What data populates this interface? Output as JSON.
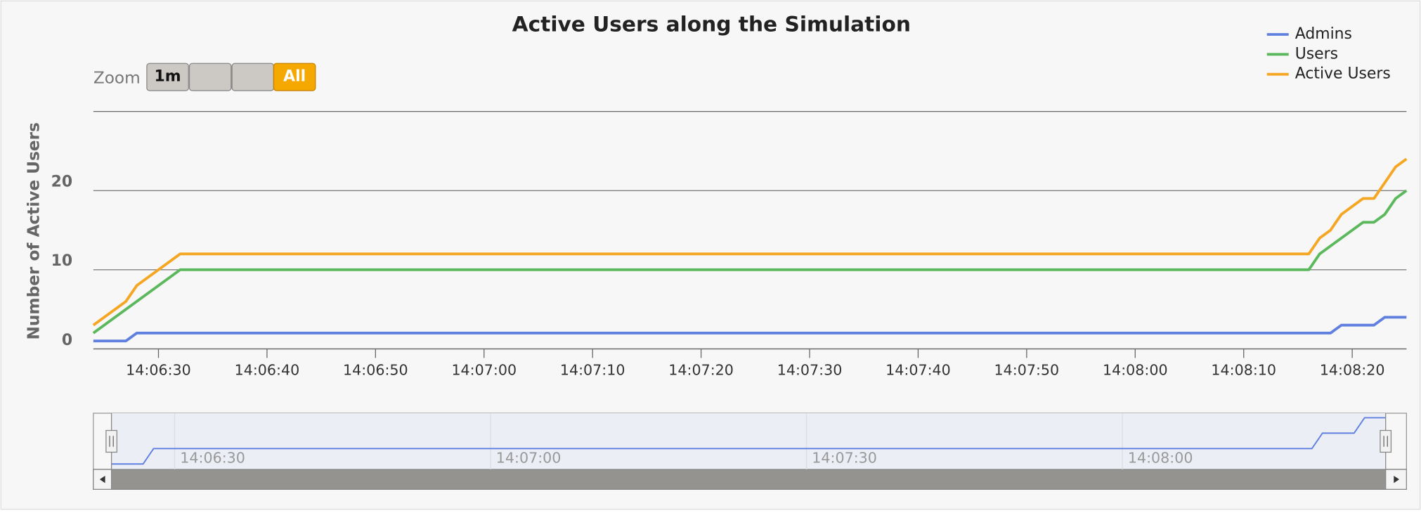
{
  "chart_data": {
    "type": "line",
    "title": "Active Users along the Simulation",
    "y_label": "Number of Active Users",
    "zoom_label": "Zoom",
    "zoom_buttons": [
      "1m",
      "All"
    ],
    "xlim": [
      "14:06:24",
      "14:08:25"
    ],
    "xticks": [
      "14:06:30",
      "14:06:40",
      "14:06:50",
      "14:07:00",
      "14:07:10",
      "14:07:20",
      "14:07:30",
      "14:07:40",
      "14:07:50",
      "14:08:00",
      "14:08:10",
      "14:08:20"
    ],
    "ylim": [
      0,
      30
    ],
    "yticks": [
      0,
      10,
      20
    ],
    "grid": true,
    "legend": "top-right",
    "series": [
      {
        "name": "Admins",
        "color": "#6080e0",
        "x": [
          "14:06:24",
          "14:06:27",
          "14:06:28",
          "14:08:18",
          "14:08:19",
          "14:08:22",
          "14:08:23",
          "14:08:25"
        ],
        "values": [
          1,
          1,
          2,
          2,
          3,
          3,
          4,
          4
        ]
      },
      {
        "name": "Users",
        "color": "#5cb85c",
        "x": [
          "14:06:24",
          "14:06:32",
          "14:08:16",
          "14:08:17",
          "14:08:21",
          "14:08:22",
          "14:08:23",
          "14:08:24",
          "14:08:25"
        ],
        "values": [
          2,
          10,
          10,
          12,
          16,
          16,
          17,
          19,
          20
        ]
      },
      {
        "name": "Active Users",
        "color": "#f5a623",
        "x": [
          "14:06:24",
          "14:06:27",
          "14:06:28",
          "14:06:32",
          "14:08:16",
          "14:08:17",
          "14:08:18",
          "14:08:19",
          "14:08:21",
          "14:08:22",
          "14:08:23",
          "14:08:24",
          "14:08:25"
        ],
        "values": [
          3,
          6,
          8,
          12,
          12,
          14,
          15,
          17,
          19,
          19,
          21,
          23,
          24
        ]
      }
    ],
    "navigator": {
      "xticks": [
        "14:06:30",
        "14:07:00",
        "14:07:30",
        "14:08:00"
      ]
    }
  }
}
